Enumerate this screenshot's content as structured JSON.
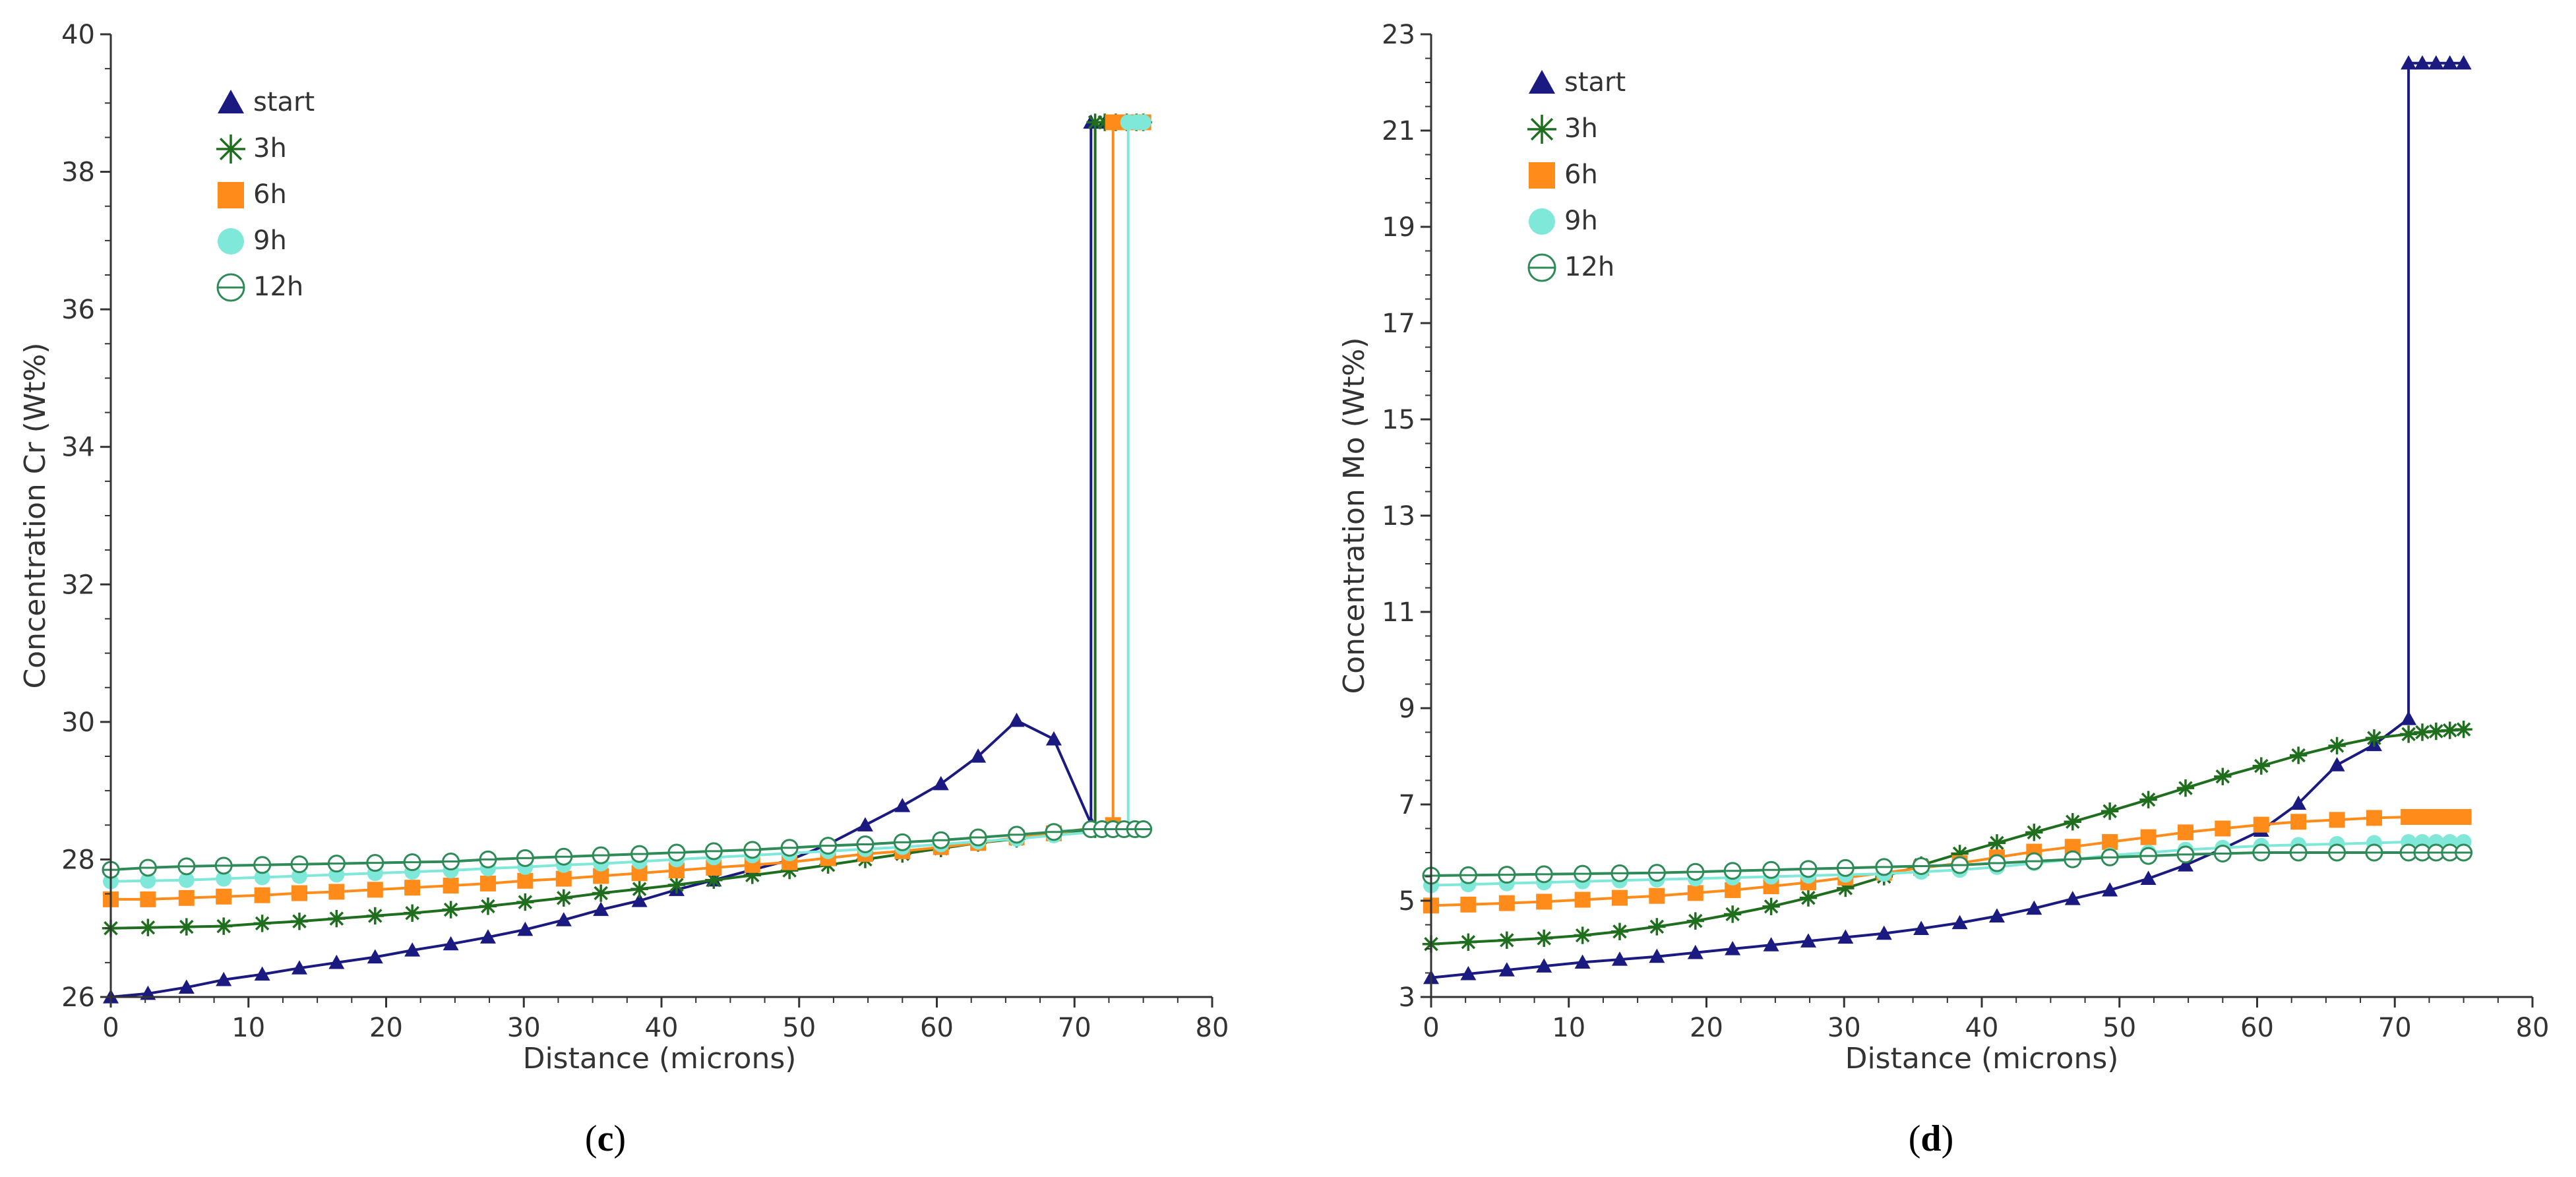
{
  "colors": {
    "start": "#1a1a80",
    "h3": "#1e6e1e",
    "h6": "#ff8c1a",
    "h9": "#7fe8d8",
    "h12": "#2e8b57",
    "axis": "#333333",
    "text": "#333333"
  },
  "chart_data": [
    {
      "type": "line",
      "panel_label": "(c)",
      "panel_prefix": "(",
      "panel_letter": "c",
      "panel_suffix": ")",
      "xlabel": "Distance (microns)",
      "ylabel": "Concentration Cr (Wt%)",
      "xlim": [
        0,
        80
      ],
      "ylim": [
        26,
        40
      ],
      "xticks": [
        0,
        10,
        20,
        30,
        40,
        50,
        60,
        70,
        80
      ],
      "yticks": [
        26,
        28,
        30,
        32,
        34,
        36,
        38,
        40
      ],
      "legend_position": "top-left",
      "legend": [
        "start",
        "3h",
        "6h",
        "9h",
        "12h"
      ],
      "series": [
        {
          "name": "start",
          "marker": "triangle",
          "colorKey": "start",
          "x": [
            0,
            2.7,
            5.5,
            8.2,
            11,
            13.7,
            16.4,
            19.2,
            21.9,
            24.7,
            27.4,
            30.1,
            32.9,
            35.6,
            38.4,
            41.1,
            43.8,
            46.6,
            49.3,
            52.1,
            54.8,
            57.5,
            60.3,
            63,
            65.8,
            68.5,
            71.2,
            71.2,
            72.2,
            73.2,
            74.2,
            75
          ],
          "y": [
            26,
            26.05,
            26.14,
            26.25,
            26.33,
            26.42,
            26.5,
            26.58,
            26.68,
            26.77,
            26.87,
            26.98,
            27.12,
            27.27,
            27.4,
            27.56,
            27.7,
            27.85,
            27.99,
            28.22,
            28.5,
            28.78,
            29.1,
            29.5,
            30.02,
            29.75,
            28.52,
            38.72,
            38.72,
            38.72,
            38.72,
            38.72
          ]
        },
        {
          "name": "3h",
          "marker": "asterisk",
          "colorKey": "h3",
          "x": [
            0,
            2.7,
            5.5,
            8.2,
            11,
            13.7,
            16.4,
            19.2,
            21.9,
            24.7,
            27.4,
            30.1,
            32.9,
            35.6,
            38.4,
            41.1,
            43.8,
            46.6,
            49.3,
            52.1,
            54.8,
            57.5,
            60.3,
            63,
            65.8,
            68.5,
            71.5,
            71.5,
            72.2,
            73,
            73.8,
            74.5,
            75
          ],
          "y": [
            27,
            27.01,
            27.02,
            27.03,
            27.07,
            27.1,
            27.14,
            27.18,
            27.22,
            27.27,
            27.32,
            27.38,
            27.44,
            27.51,
            27.57,
            27.63,
            27.7,
            27.77,
            27.84,
            27.92,
            28,
            28.08,
            28.16,
            28.24,
            28.3,
            28.38,
            28.44,
            38.72,
            38.72,
            38.72,
            38.72,
            38.72,
            38.72
          ]
        },
        {
          "name": "6h",
          "marker": "square",
          "colorKey": "h6",
          "x": [
            0,
            2.7,
            5.5,
            8.2,
            11,
            13.7,
            16.4,
            19.2,
            21.9,
            24.7,
            27.4,
            30.1,
            32.9,
            35.6,
            38.4,
            41.1,
            43.8,
            46.6,
            49.3,
            52.1,
            54.8,
            57.5,
            60.3,
            63,
            65.8,
            68.5,
            72.8,
            72.8,
            73.5,
            74.2,
            75
          ],
          "y": [
            27.42,
            27.42,
            27.44,
            27.46,
            27.48,
            27.51,
            27.53,
            27.56,
            27.59,
            27.62,
            27.65,
            27.69,
            27.72,
            27.76,
            27.8,
            27.84,
            27.88,
            27.92,
            27.96,
            28.02,
            28.08,
            28.12,
            28.18,
            28.24,
            28.32,
            28.38,
            28.5,
            38.72,
            38.72,
            38.72,
            38.72
          ]
        },
        {
          "name": "9h",
          "marker": "circle-filled",
          "colorKey": "h9",
          "x": [
            0,
            2.7,
            5.5,
            8.2,
            11,
            13.7,
            16.4,
            19.2,
            21.9,
            24.7,
            27.4,
            30.1,
            32.9,
            35.6,
            38.4,
            41.1,
            43.8,
            46.6,
            49.3,
            52.1,
            54.8,
            57.5,
            60.3,
            63,
            65.8,
            68.5,
            73.9,
            73.9,
            74.5,
            75
          ],
          "y": [
            27.68,
            27.69,
            27.7,
            27.72,
            27.74,
            27.76,
            27.78,
            27.8,
            27.82,
            27.84,
            27.87,
            27.89,
            27.92,
            27.94,
            27.97,
            28,
            28.03,
            28.06,
            28.09,
            28.12,
            28.15,
            28.18,
            28.22,
            28.26,
            28.3,
            28.35,
            28.44,
            38.72,
            38.72,
            38.72
          ]
        },
        {
          "name": "12h",
          "marker": "circle-open",
          "colorKey": "h12",
          "x": [
            0,
            2.7,
            5.5,
            8.2,
            11,
            13.7,
            16.4,
            19.2,
            21.9,
            24.7,
            27.4,
            30.1,
            32.9,
            35.6,
            38.4,
            41.1,
            43.8,
            46.6,
            49.3,
            52.1,
            54.8,
            57.5,
            60.3,
            63,
            65.8,
            68.5,
            71.2,
            72,
            72.8,
            73.6,
            74.4,
            75
          ],
          "y": [
            27.85,
            27.88,
            27.9,
            27.91,
            27.92,
            27.93,
            27.94,
            27.95,
            27.96,
            27.97,
            28,
            28.02,
            28.04,
            28.06,
            28.08,
            28.1,
            28.12,
            28.14,
            28.17,
            28.2,
            28.22,
            28.25,
            28.28,
            28.32,
            28.36,
            28.4,
            28.44,
            28.44,
            28.44,
            28.44,
            28.44,
            28.44
          ]
        }
      ]
    },
    {
      "type": "line",
      "panel_label": "(d)",
      "panel_prefix": "(",
      "panel_letter": "d",
      "panel_suffix": ")",
      "xlabel": "Distance (microns)",
      "ylabel": "Concentration Mo (Wt%)",
      "xlim": [
        0,
        80
      ],
      "ylim": [
        3,
        23
      ],
      "xticks": [
        0,
        10,
        20,
        30,
        40,
        50,
        60,
        70,
        80
      ],
      "yticks": [
        3,
        5,
        7,
        9,
        11,
        13,
        15,
        17,
        19,
        21,
        23
      ],
      "legend_position": "top-left",
      "legend": [
        "start",
        "3h",
        "6h",
        "9h",
        "12h"
      ],
      "series": [
        {
          "name": "start",
          "marker": "triangle",
          "colorKey": "start",
          "x": [
            0,
            2.7,
            5.5,
            8.2,
            11,
            13.7,
            16.4,
            19.2,
            21.9,
            24.7,
            27.4,
            30.1,
            32.9,
            35.6,
            38.4,
            41.1,
            43.8,
            46.6,
            49.3,
            52.1,
            54.8,
            57.5,
            60.3,
            63,
            65.8,
            68.5,
            71,
            71,
            72,
            73,
            74,
            75
          ],
          "y": [
            3.4,
            3.48,
            3.56,
            3.64,
            3.72,
            3.78,
            3.84,
            3.92,
            4,
            4.08,
            4.16,
            4.24,
            4.32,
            4.42,
            4.54,
            4.68,
            4.84,
            5.04,
            5.22,
            5.46,
            5.74,
            6.08,
            6.46,
            7.02,
            7.82,
            8.24,
            8.78,
            22.4,
            22.4,
            22.4,
            22.4,
            22.4
          ]
        },
        {
          "name": "3h",
          "marker": "asterisk",
          "colorKey": "h3",
          "x": [
            0,
            2.7,
            5.5,
            8.2,
            11,
            13.7,
            16.4,
            19.2,
            21.9,
            24.7,
            27.4,
            30.1,
            32.9,
            35.6,
            38.4,
            41.1,
            43.8,
            46.6,
            49.3,
            52.1,
            54.8,
            57.5,
            60.3,
            63,
            65.8,
            68.5,
            71,
            72,
            73,
            74,
            75
          ],
          "y": [
            4.1,
            4.14,
            4.18,
            4.22,
            4.28,
            4.36,
            4.46,
            4.58,
            4.72,
            4.88,
            5.06,
            5.26,
            5.5,
            5.74,
            5.98,
            6.2,
            6.42,
            6.64,
            6.86,
            7.1,
            7.34,
            7.58,
            7.8,
            8.02,
            8.22,
            8.38,
            8.46,
            8.5,
            8.52,
            8.54,
            8.56
          ]
        },
        {
          "name": "6h",
          "marker": "square",
          "colorKey": "h6",
          "x": [
            0,
            2.7,
            5.5,
            8.2,
            11,
            13.7,
            16.4,
            19.2,
            21.9,
            24.7,
            27.4,
            30.1,
            32.9,
            35.6,
            38.4,
            41.1,
            43.8,
            46.6,
            49.3,
            52.1,
            54.8,
            57.5,
            60.3,
            63,
            65.8,
            68.5,
            71,
            72,
            73,
            74,
            75
          ],
          "y": [
            4.9,
            4.92,
            4.95,
            4.98,
            5.02,
            5.06,
            5.1,
            5.16,
            5.22,
            5.3,
            5.38,
            5.48,
            5.58,
            5.68,
            5.78,
            5.9,
            6.02,
            6.12,
            6.22,
            6.32,
            6.42,
            6.5,
            6.58,
            6.64,
            6.68,
            6.72,
            6.74,
            6.74,
            6.74,
            6.74,
            6.74
          ]
        },
        {
          "name": "9h",
          "marker": "circle-filled",
          "colorKey": "h9",
          "x": [
            0,
            2.7,
            5.5,
            8.2,
            11,
            13.7,
            16.4,
            19.2,
            21.9,
            24.7,
            27.4,
            30.1,
            32.9,
            35.6,
            38.4,
            41.1,
            43.8,
            46.6,
            49.3,
            52.1,
            54.8,
            57.5,
            60.3,
            63,
            65.8,
            68.5,
            71,
            72,
            73,
            74,
            75
          ],
          "y": [
            5.32,
            5.34,
            5.36,
            5.38,
            5.4,
            5.42,
            5.44,
            5.46,
            5.48,
            5.5,
            5.52,
            5.54,
            5.56,
            5.6,
            5.64,
            5.7,
            5.78,
            5.86,
            5.94,
            6,
            6.06,
            6.1,
            6.14,
            6.16,
            6.18,
            6.2,
            6.22,
            6.22,
            6.22,
            6.22,
            6.22
          ]
        },
        {
          "name": "12h",
          "marker": "circle-open",
          "colorKey": "h12",
          "x": [
            0,
            2.7,
            5.5,
            8.2,
            11,
            13.7,
            16.4,
            19.2,
            21.9,
            24.7,
            27.4,
            30.1,
            32.9,
            35.6,
            38.4,
            41.1,
            43.8,
            46.6,
            49.3,
            52.1,
            54.8,
            57.5,
            60.3,
            63,
            65.8,
            68.5,
            71,
            72,
            73,
            74,
            75
          ],
          "y": [
            5.52,
            5.53,
            5.54,
            5.55,
            5.56,
            5.57,
            5.58,
            5.6,
            5.62,
            5.64,
            5.66,
            5.68,
            5.7,
            5.72,
            5.74,
            5.78,
            5.82,
            5.86,
            5.9,
            5.93,
            5.96,
            5.98,
            6,
            6,
            6,
            6,
            6,
            6,
            6,
            6,
            6
          ]
        }
      ]
    }
  ]
}
